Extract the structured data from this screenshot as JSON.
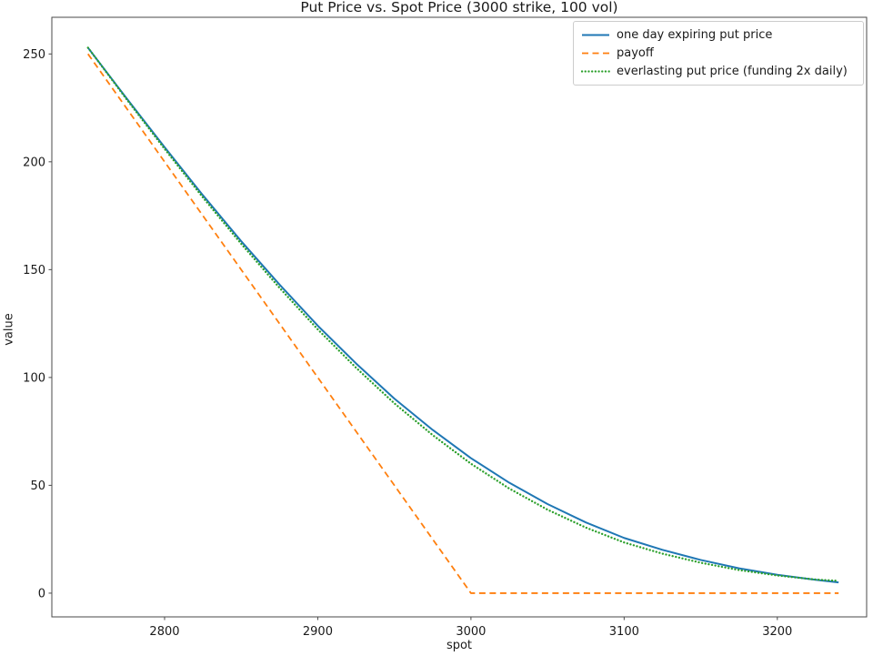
{
  "chart_data": {
    "type": "line",
    "title": "Put Price vs. Spot Price (3000 strike, 100 vol)",
    "xlabel": "spot",
    "ylabel": "value",
    "xlim": [
      2726.4,
      3258.3
    ],
    "ylim": [
      -11.0,
      267.0
    ],
    "x_ticks": [
      2800,
      2900,
      3000,
      3100,
      3200
    ],
    "y_ticks": [
      0,
      50,
      100,
      150,
      200,
      250
    ],
    "grid": false,
    "legend_position": "upper right",
    "background_color": "#ffffff",
    "spine_color": "#4a4a4a",
    "text_color": "#1a1a1a",
    "x": [
      2750,
      2775,
      2800,
      2825,
      2850,
      2875,
      2900,
      2925,
      2950,
      2975,
      3000,
      3025,
      3050,
      3075,
      3100,
      3125,
      3150,
      3175,
      3200,
      3225,
      3240
    ],
    "series": [
      {
        "name": "one day expiring put price",
        "color": "#1f77b4",
        "style": "solid",
        "values": [
          252.9,
          229.6,
          206.8,
          184.5,
          163.2,
          143.1,
          124.0,
          106.5,
          90.2,
          75.7,
          62.6,
          51.2,
          41.3,
          32.8,
          25.6,
          20.1,
          15.4,
          11.5,
          8.5,
          6.2,
          5.0
        ]
      },
      {
        "name": "payoff",
        "color": "#ff7f0e",
        "style": "dashed",
        "values": [
          250,
          225,
          200,
          175,
          150,
          125,
          100,
          75,
          50,
          25,
          0,
          0,
          0,
          0,
          0,
          0,
          0,
          0,
          0,
          0,
          0
        ]
      },
      {
        "name": "everlasting put price (funding 2x daily)",
        "color": "#2ca02c",
        "style": "dotted",
        "values": [
          252.9,
          229.2,
          206.0,
          183.5,
          162.0,
          141.6,
          122.3,
          104.5,
          88.0,
          73.3,
          60.0,
          48.5,
          38.7,
          30.4,
          23.5,
          18.3,
          14.1,
          10.7,
          8.2,
          6.3,
          5.7
        ]
      }
    ]
  }
}
